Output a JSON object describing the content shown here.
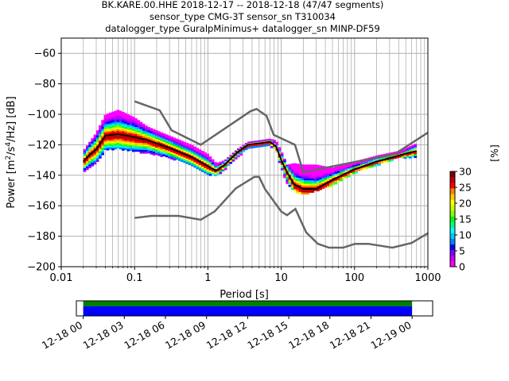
{
  "chart_data": {
    "type": "heatmap",
    "title_lines": [
      "BK.KARE.00.HHE   2018-12-17 -- 2018-12-18  (47/47 segments)",
      "sensor_type CMG-3T sensor_sn T310034",
      "datalogger_type GuralpMinimus+ datalogger_sn MINP-DF59"
    ],
    "xlabel": "Period [s]",
    "ylabel_parts": [
      "Power [m",
      "2",
      "/s",
      "4",
      "/Hz] [dB]"
    ],
    "x_scale": "log",
    "xlim": [
      0.01,
      1000
    ],
    "ylim": [
      -200,
      -50
    ],
    "x_ticks": [
      {
        "value": 0.01,
        "label": "0.01"
      },
      {
        "value": 0.1,
        "label": "0.1"
      },
      {
        "value": 1,
        "label": "1"
      },
      {
        "value": 10,
        "label": "10"
      },
      {
        "value": 100,
        "label": "100"
      },
      {
        "value": 1000,
        "label": "1000"
      }
    ],
    "y_ticks": [
      {
        "value": -60,
        "label": "−60"
      },
      {
        "value": -80,
        "label": "−80"
      },
      {
        "value": -100,
        "label": "−100"
      },
      {
        "value": -120,
        "label": "−120"
      },
      {
        "value": -140,
        "label": "−140"
      },
      {
        "value": -160,
        "label": "−160"
      },
      {
        "value": -180,
        "label": "−180"
      },
      {
        "value": -200,
        "label": "−200"
      }
    ],
    "grid": true,
    "nhnm": {
      "period": [
        0.1,
        0.22,
        0.32,
        0.8,
        3.8,
        4.6,
        6.3,
        7.9,
        15.4,
        20,
        354.8,
        1000
      ],
      "power": [
        -91.5,
        -97.4,
        -110.5,
        -120,
        -98,
        -96.5,
        -101,
        -113.5,
        -120,
        -138,
        -126,
        -112
      ]
    },
    "nlnm": {
      "period": [
        0.1,
        0.17,
        0.4,
        0.8,
        1.24,
        2.4,
        4.3,
        5,
        6,
        10,
        12,
        15.6,
        21.9,
        31.6,
        45,
        70,
        101,
        154,
        328,
        600,
        1000
      ],
      "power": [
        -168,
        -166.7,
        -166.7,
        -169.2,
        -163.7,
        -148.6,
        -141.1,
        -141.1,
        -149,
        -163.8,
        -166.2,
        -162.1,
        -177.5,
        -185,
        -187.5,
        -187.5,
        -185,
        -185,
        -187.5,
        -184.4,
        -178
      ]
    },
    "median": {
      "period": [
        0.02,
        0.025,
        0.03,
        0.04,
        0.06,
        0.1,
        0.15,
        0.3,
        0.6,
        1,
        1.3,
        1.7,
        2.5,
        3.5,
        5,
        7,
        8.5,
        10,
        12,
        15,
        20,
        30,
        50,
        100,
        200,
        400,
        700
      ],
      "power": [
        -131,
        -126,
        -123,
        -114,
        -113,
        -115,
        -117,
        -122,
        -128,
        -134,
        -137,
        -133,
        -125,
        -120,
        -119,
        -118,
        -121,
        -130,
        -138,
        -146,
        -149,
        -149,
        -143,
        -136,
        -131,
        -127,
        -124
      ]
    },
    "upper_envelope": {
      "period": [
        0.02,
        0.03,
        0.04,
        0.06,
        0.1,
        0.15,
        0.3,
        0.6,
        1,
        1.3,
        1.7,
        2.5,
        3.5,
        5,
        7,
        8.5,
        10,
        12,
        15,
        20,
        30,
        50,
        100,
        200,
        400,
        700
      ],
      "power": [
        -124,
        -112,
        -100,
        -97,
        -102,
        -108,
        -114,
        -120,
        -126,
        -132,
        -130,
        -123,
        -118,
        -117,
        -116,
        -117,
        -124,
        -133,
        -132,
        -133,
        -133,
        -135,
        -131,
        -127,
        -124,
        -119
      ]
    },
    "lower_envelope": {
      "period": [
        0.02,
        0.03,
        0.04,
        0.06,
        0.1,
        0.15,
        0.3,
        0.6,
        1,
        1.3,
        1.7,
        2.5,
        3.5,
        5,
        7,
        8.5,
        10,
        12,
        15,
        20,
        30,
        50,
        100,
        200,
        400,
        700
      ],
      "power": [
        -138,
        -132,
        -123,
        -122,
        -124,
        -125,
        -128,
        -133,
        -139,
        -140,
        -136,
        -128,
        -122,
        -121,
        -120,
        -123,
        -135,
        -145,
        -150,
        -152,
        -150,
        -146,
        -138,
        -133,
        -128,
        -128
      ]
    },
    "colorbar": {
      "label": "[%]",
      "vmin": 0,
      "vmax": 30,
      "ticks": [
        {
          "value": 0,
          "label": "0"
        },
        {
          "value": 5,
          "label": "5"
        },
        {
          "value": 10,
          "label": "10"
        },
        {
          "value": 15,
          "label": "15"
        },
        {
          "value": 20,
          "label": "20"
        },
        {
          "value": 25,
          "label": "25"
        },
        {
          "value": 30,
          "label": "30"
        }
      ],
      "colors": [
        "#ff00ff",
        "#c800ff",
        "#8000ff",
        "#0000ff",
        "#0080ff",
        "#00c8ff",
        "#00ffff",
        "#00ff80",
        "#00ff00",
        "#80ff00",
        "#c8ff00",
        "#ffff00",
        "#ffc800",
        "#ff8000",
        "#ff0000",
        "#c00000",
        "#800000"
      ]
    },
    "coverage": {
      "xlim": [
        "2018-12-17 23:30",
        "2018-12-19 01:30"
      ],
      "covered": [
        "2018-12-18 00:00",
        "2018-12-19 00:00"
      ],
      "bar_colors": [
        "#008000",
        "#0000ff"
      ],
      "ticks": [
        {
          "value": "2018-12-18 00:00",
          "label": "12-18 00"
        },
        {
          "value": "2018-12-18 03:00",
          "label": "12-18 03"
        },
        {
          "value": "2018-12-18 06:00",
          "label": "12-18 06"
        },
        {
          "value": "2018-12-18 09:00",
          "label": "12-18 09"
        },
        {
          "value": "2018-12-18 12:00",
          "label": "12-18 12"
        },
        {
          "value": "2018-12-18 15:00",
          "label": "12-18 15"
        },
        {
          "value": "2018-12-18 18:00",
          "label": "12-18 18"
        },
        {
          "value": "2018-12-18 21:00",
          "label": "12-18 21"
        },
        {
          "value": "2018-12-19 00:00",
          "label": "12-19 00"
        }
      ]
    }
  }
}
